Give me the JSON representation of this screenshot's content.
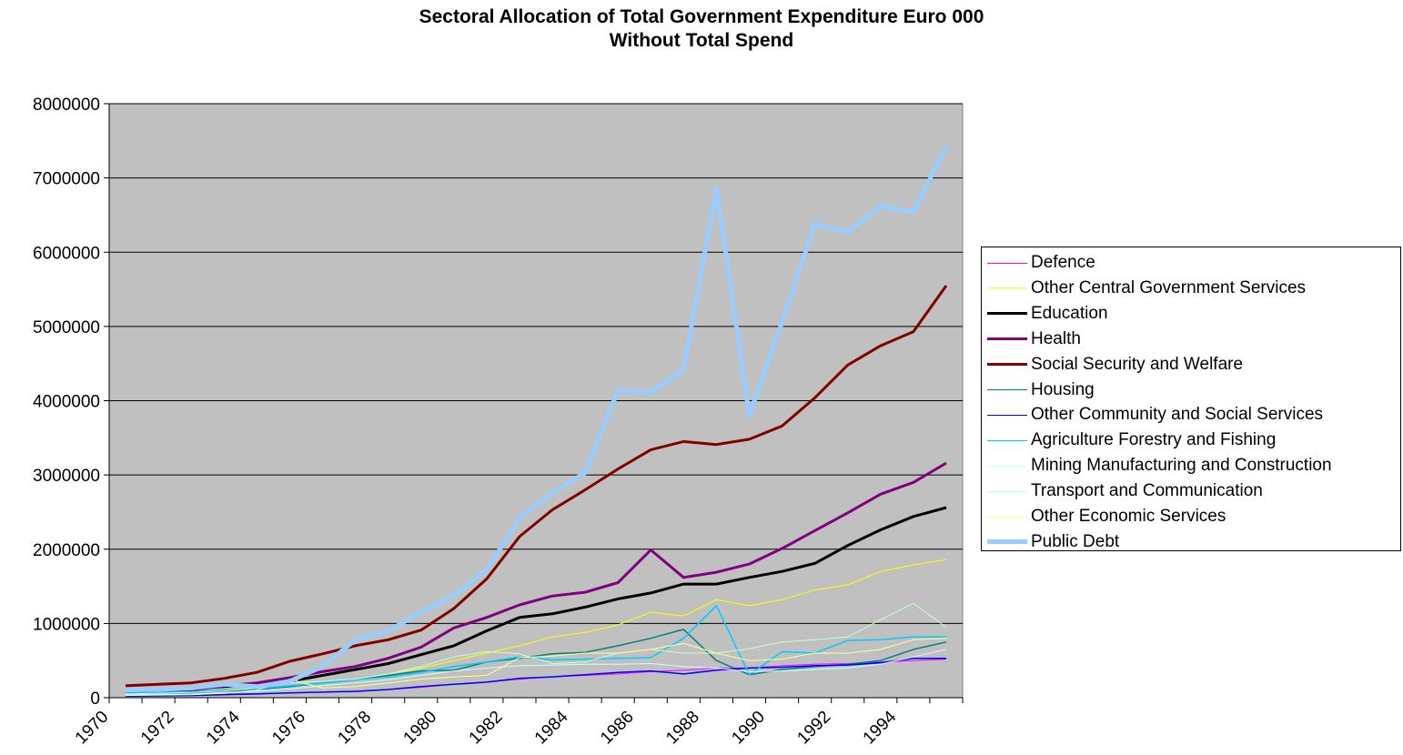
{
  "chart_data": {
    "type": "line",
    "title": "Sectoral Allocation of Total Government Expenditure Euro 000",
    "subtitle": "Without Total Spend",
    "xlabel": "",
    "ylabel": "",
    "ylim": [
      0,
      8000000
    ],
    "yticks": [
      "0",
      "1000000",
      "2000000",
      "3000000",
      "4000000",
      "5000000",
      "6000000",
      "7000000",
      "8000000"
    ],
    "xtick_labels": [
      "1970",
      "1972",
      "1974",
      "1976",
      "1978",
      "1980",
      "1982",
      "1984",
      "1986",
      "1988",
      "1990",
      "1992",
      "1994"
    ],
    "x": [
      1970,
      1971,
      1972,
      1973,
      1974,
      1975,
      1976,
      1977,
      1978,
      1979,
      1980,
      1981,
      1982,
      1983,
      1984,
      1985,
      1986,
      1987,
      1988,
      1989,
      1990,
      1991,
      1992,
      1993,
      1994,
      1995
    ],
    "grid": true,
    "legend_position": "right",
    "series": [
      {
        "name": "Defence",
        "color": "#ff00ff",
        "width": 1,
        "values": [
          30000,
          35000,
          40000,
          50000,
          55000,
          65000,
          75000,
          90000,
          110000,
          140000,
          180000,
          210000,
          250000,
          280000,
          300000,
          320000,
          350000,
          370000,
          400000,
          400000,
          430000,
          450000,
          460000,
          480000,
          500000,
          520000
        ]
      },
      {
        "name": "Other Central Government Services",
        "color": "#ffff00",
        "width": 1,
        "values": [
          60000,
          70000,
          80000,
          100000,
          120000,
          150000,
          200000,
          250000,
          320000,
          400000,
          500000,
          600000,
          700000,
          820000,
          880000,
          980000,
          1150000,
          1100000,
          1320000,
          1240000,
          1320000,
          1450000,
          1520000,
          1700000,
          1790000,
          1860000
        ]
      },
      {
        "name": "Education",
        "color": "#000000",
        "width": 3,
        "values": [
          90000,
          100000,
          120000,
          150000,
          180000,
          220000,
          300000,
          380000,
          460000,
          580000,
          700000,
          900000,
          1080000,
          1130000,
          1220000,
          1330000,
          1410000,
          1530000,
          1530000,
          1620000,
          1700000,
          1810000,
          2050000,
          2260000,
          2440000,
          2560000
        ]
      },
      {
        "name": "Health",
        "color": "#800080",
        "width": 3,
        "values": [
          70000,
          80000,
          100000,
          160000,
          200000,
          270000,
          350000,
          420000,
          530000,
          680000,
          940000,
          1080000,
          1250000,
          1370000,
          1420000,
          1550000,
          1990000,
          1620000,
          1690000,
          1800000,
          2010000,
          2250000,
          2490000,
          2740000,
          2900000,
          3160000
        ]
      },
      {
        "name": "Social Security and Welfare",
        "color": "#800000",
        "width": 3,
        "values": [
          160000,
          180000,
          200000,
          260000,
          340000,
          490000,
          590000,
          700000,
          780000,
          910000,
          1200000,
          1600000,
          2170000,
          2530000,
          2800000,
          3080000,
          3340000,
          3450000,
          3410000,
          3480000,
          3660000,
          4040000,
          4480000,
          4740000,
          4930000,
          5550000
        ]
      },
      {
        "name": "Housing",
        "color": "#008080",
        "width": 1.5,
        "values": [
          50000,
          55000,
          60000,
          80000,
          110000,
          150000,
          200000,
          240000,
          300000,
          360000,
          370000,
          480000,
          530000,
          590000,
          610000,
          700000,
          800000,
          920000,
          500000,
          310000,
          380000,
          420000,
          450000,
          500000,
          650000,
          750000
        ]
      },
      {
        "name": "Other Community and Social Services",
        "color": "#0000ff",
        "width": 1.5,
        "values": [
          20000,
          25000,
          30000,
          40000,
          50000,
          65000,
          75000,
          85000,
          110000,
          150000,
          180000,
          210000,
          260000,
          280000,
          310000,
          340000,
          360000,
          320000,
          370000,
          400000,
          410000,
          430000,
          440000,
          470000,
          530000,
          530000
        ]
      },
      {
        "name": "Agriculture Forestry and Fishing",
        "color": "#00ccff",
        "width": 1.5,
        "values": [
          60000,
          70000,
          80000,
          100000,
          120000,
          160000,
          200000,
          240000,
          280000,
          340000,
          420000,
          480000,
          550000,
          510000,
          520000,
          530000,
          540000,
          800000,
          1240000,
          310000,
          620000,
          600000,
          770000,
          780000,
          820000,
          820000
        ]
      },
      {
        "name": "Mining Manufacturing and Construction",
        "color": "#ccffff",
        "width": 1,
        "values": [
          40000,
          45000,
          50000,
          70000,
          90000,
          120000,
          160000,
          200000,
          240000,
          300000,
          360000,
          400000,
          430000,
          440000,
          450000,
          450000,
          460000,
          420000,
          400000,
          350000,
          360000,
          380000,
          400000,
          450000,
          550000,
          650000
        ]
      },
      {
        "name": "Transport and Communication",
        "color": "#ccffcc",
        "width": 1,
        "values": [
          50000,
          60000,
          70000,
          90000,
          130000,
          200000,
          220000,
          250000,
          320000,
          420000,
          550000,
          620000,
          590000,
          460000,
          480000,
          600000,
          650000,
          600000,
          600000,
          660000,
          750000,
          780000,
          820000,
          1050000,
          1270000,
          950000
        ]
      },
      {
        "name": "Other Economic Services",
        "color": "#ffff99",
        "width": 1,
        "values": [
          30000,
          35000,
          40000,
          60000,
          100000,
          250000,
          130000,
          150000,
          200000,
          250000,
          280000,
          300000,
          540000,
          560000,
          600000,
          600000,
          650000,
          730000,
          600000,
          500000,
          520000,
          600000,
          600000,
          650000,
          780000,
          800000
        ]
      },
      {
        "name": "Public Debt",
        "color": "#99ccff",
        "width": 5,
        "values": [
          100000,
          110000,
          130000,
          180000,
          150000,
          220000,
          420000,
          780000,
          900000,
          1150000,
          1380000,
          1720000,
          2420000,
          2760000,
          3030000,
          4140000,
          4110000,
          4420000,
          6860000,
          3800000,
          5060000,
          6380000,
          6270000,
          6620000,
          6540000,
          7430000
        ]
      }
    ]
  }
}
